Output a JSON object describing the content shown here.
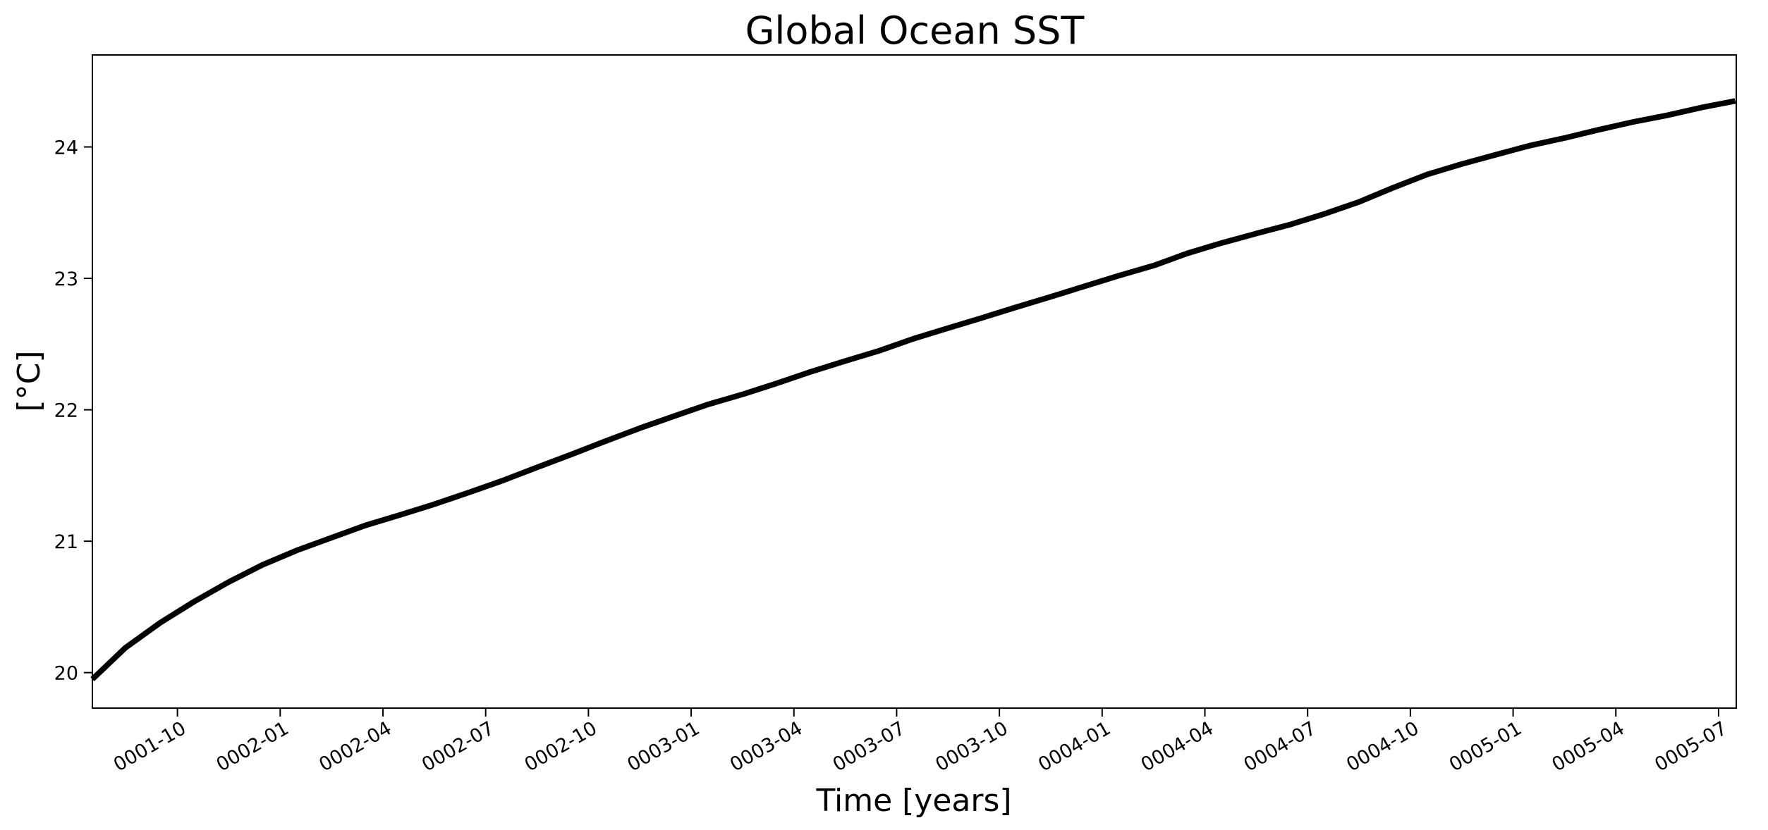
{
  "chart_data": {
    "type": "line",
    "title": "Global Ocean SST",
    "xlabel": "Time [years]",
    "ylabel": "[°C]",
    "grid": false,
    "legend": "none",
    "x_ticks": [
      "0001-10",
      "0002-01",
      "0002-04",
      "0002-07",
      "0002-10",
      "0003-01",
      "0003-04",
      "0003-07",
      "0003-10",
      "0004-01",
      "0004-04",
      "0004-07",
      "0004-10",
      "0005-01",
      "0005-04",
      "0005-07"
    ],
    "y_ticks": [
      "20",
      "21",
      "22",
      "23",
      "24"
    ],
    "xlim": [
      "0001-07-17",
      "0005-07-17"
    ],
    "ylim": [
      19.73,
      24.7
    ],
    "colors": {
      "line": "#000000"
    },
    "series": [
      {
        "x": [
          "0001-07-17",
          "0001-08-16",
          "0001-09-16",
          "0001-10-16",
          "0001-11-16",
          "0001-12-16",
          "0002-01-16",
          "0002-02-16",
          "0002-03-16",
          "0002-04-16",
          "0002-05-16",
          "0002-06-16",
          "0002-07-16",
          "0002-08-16",
          "0002-09-16",
          "0002-10-16",
          "0002-11-16",
          "0002-12-16",
          "0003-01-16",
          "0003-02-16",
          "0003-03-16",
          "0003-04-16",
          "0003-05-16",
          "0003-06-16",
          "0003-07-16",
          "0003-08-16",
          "0003-09-16",
          "0003-10-16",
          "0003-11-16",
          "0003-12-16",
          "0004-01-16",
          "0004-02-16",
          "0004-03-16",
          "0004-04-16",
          "0004-05-16",
          "0004-06-16",
          "0004-07-16",
          "0004-08-16",
          "0004-09-16",
          "0004-10-16",
          "0004-11-16",
          "0004-12-16",
          "0005-01-16",
          "0005-02-16",
          "0005-03-16",
          "0005-04-16",
          "0005-05-16",
          "0005-06-16",
          "0005-07-16"
        ],
        "y": [
          19.95,
          20.19,
          20.38,
          20.54,
          20.69,
          20.82,
          20.93,
          21.03,
          21.12,
          21.2,
          21.28,
          21.37,
          21.46,
          21.56,
          21.66,
          21.76,
          21.86,
          21.95,
          22.04,
          22.12,
          22.2,
          22.29,
          22.37,
          22.45,
          22.54,
          22.62,
          22.7,
          22.78,
          22.86,
          22.94,
          23.02,
          23.1,
          23.19,
          23.27,
          23.34,
          23.41,
          23.49,
          23.58,
          23.69,
          23.79,
          23.87,
          23.94,
          24.01,
          24.07,
          24.13,
          24.19,
          24.24,
          24.3,
          24.35
        ]
      }
    ]
  }
}
